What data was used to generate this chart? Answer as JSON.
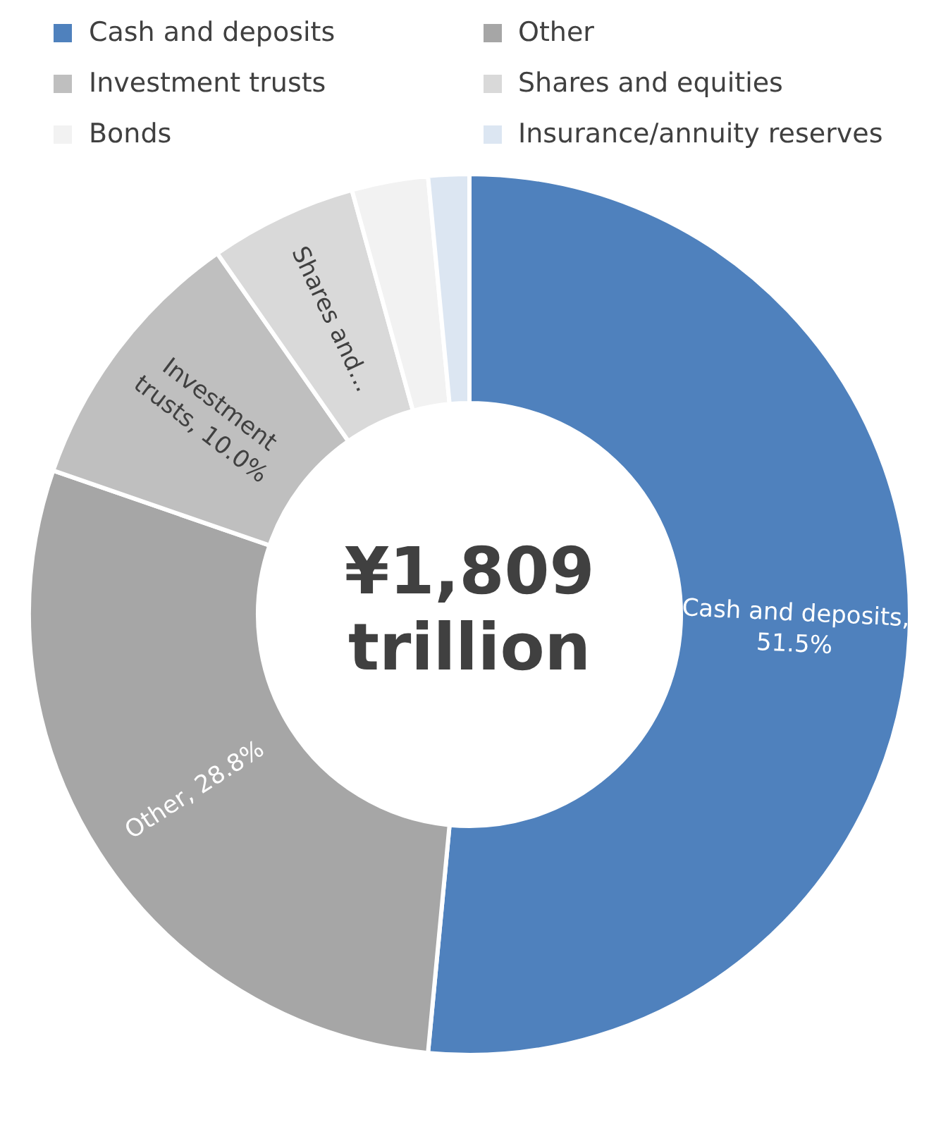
{
  "chart_data": {
    "type": "donut",
    "categories": [
      "Cash and deposits",
      "Other",
      "Investment trusts",
      "Shares and equities",
      "Bonds",
      "Insurance/annuity reserves"
    ],
    "values": [
      51.5,
      28.8,
      10.0,
      5.4,
      2.8,
      1.5
    ],
    "colors": [
      "#4f81bd",
      "#a6a6a6",
      "#bfbfbf",
      "#d9d9d9",
      "#f2f2f2",
      "#dce6f2"
    ],
    "value_labels": [
      "Cash and deposits, 51.5%",
      "Other, 28.8%",
      "Investment trusts, 10.0%",
      "Shares and...",
      null,
      null
    ],
    "annotations": [
      "¥1,809 trillion"
    ],
    "legend": "top"
  }
}
